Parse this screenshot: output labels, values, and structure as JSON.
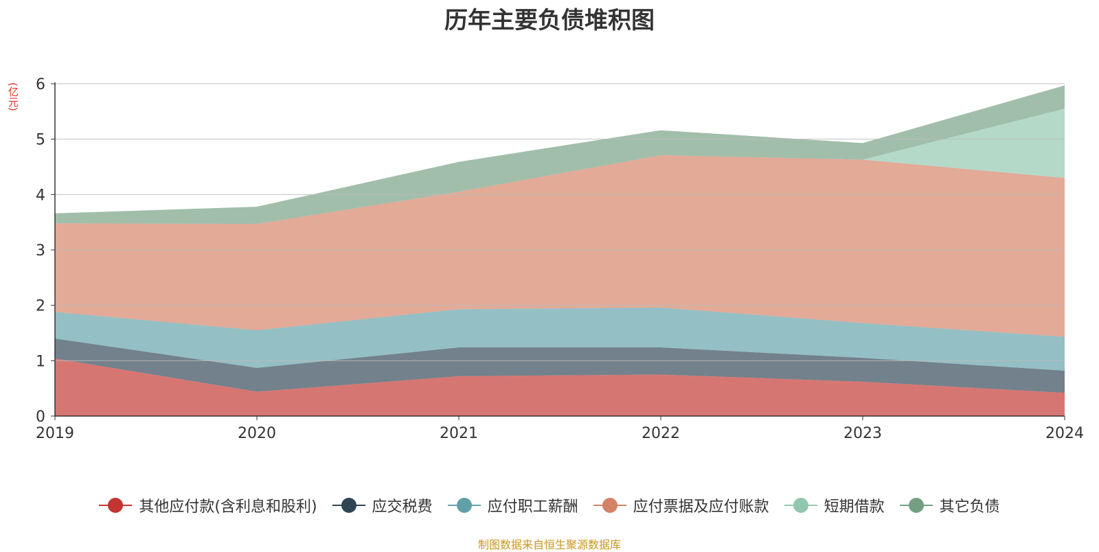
{
  "chart_data": {
    "type": "area",
    "stacked": true,
    "title": "历年主要负债堆积图",
    "yunit": "(亿元)",
    "x": [
      "2019",
      "2020",
      "2021",
      "2022",
      "2023",
      "2024"
    ],
    "ylim": [
      0,
      6
    ],
    "yticks": [
      "0",
      "1",
      "2",
      "3",
      "4",
      "5",
      "6"
    ],
    "grid": true,
    "legend_position": "bottom",
    "series": [
      {
        "name": "其他应付款(含利息和股利)",
        "color": "#c23531",
        "values": [
          1.04,
          0.44,
          0.72,
          0.75,
          0.62,
          0.42
        ]
      },
      {
        "name": "应交税费",
        "color": "#2f4554",
        "values": [
          0.36,
          0.43,
          0.52,
          0.49,
          0.43,
          0.4
        ]
      },
      {
        "name": "应付职工薪酬",
        "color": "#61a0a8",
        "values": [
          0.48,
          0.68,
          0.69,
          0.72,
          0.63,
          0.61
        ]
      },
      {
        "name": "应付票据及应付账款",
        "color": "#d48265",
        "values": [
          1.6,
          1.92,
          2.12,
          2.75,
          2.95,
          2.87
        ]
      },
      {
        "name": "短期借款",
        "color": "#91c7ae",
        "values": [
          0.0,
          0.0,
          0.0,
          0.0,
          0.0,
          1.25
        ]
      },
      {
        "name": "其它负债",
        "color": "#749f83",
        "values": [
          0.18,
          0.31,
          0.54,
          0.45,
          0.3,
          0.42
        ]
      }
    ]
  },
  "source": "制图数据来自恒生聚源数据库"
}
